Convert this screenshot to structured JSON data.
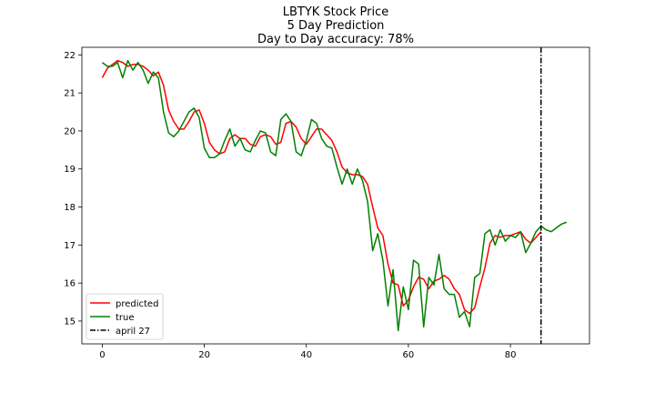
{
  "chart_data": {
    "type": "line",
    "title_lines": [
      "LBTYK Stock Price",
      "5 Day Prediction",
      "Day to Day accuracy: 78%"
    ],
    "xlabel": "",
    "ylabel": "",
    "xlim": [
      -4,
      95.5
    ],
    "ylim": [
      14.4,
      22.2
    ],
    "xticks": [
      0,
      20,
      40,
      60,
      80
    ],
    "yticks": [
      15,
      16,
      17,
      18,
      19,
      20,
      21,
      22
    ],
    "grid": false,
    "legend_position": "lower-left",
    "vline": {
      "x": 86,
      "label": "april 27",
      "color": "#000000",
      "style": "dash-dot"
    },
    "series": [
      {
        "name": "predicted",
        "color": "#ff0000",
        "x": [
          0,
          1,
          2,
          3,
          4,
          5,
          6,
          7,
          8,
          9,
          10,
          11,
          12,
          13,
          14,
          15,
          16,
          17,
          18,
          19,
          20,
          21,
          22,
          23,
          24,
          25,
          26,
          27,
          28,
          29,
          30,
          31,
          32,
          33,
          34,
          35,
          36,
          37,
          38,
          39,
          40,
          41,
          42,
          43,
          44,
          45,
          46,
          47,
          48,
          49,
          50,
          51,
          52,
          53,
          54,
          55,
          56,
          57,
          58,
          59,
          60,
          61,
          62,
          63,
          64,
          65,
          66,
          67,
          68,
          69,
          70,
          71,
          72,
          73,
          74,
          75,
          76,
          77,
          78,
          79,
          80,
          81,
          82,
          83,
          84,
          85,
          86
        ],
        "values": [
          21.4,
          21.65,
          21.75,
          21.85,
          21.8,
          21.7,
          21.75,
          21.75,
          21.7,
          21.6,
          21.45,
          21.55,
          21.2,
          20.55,
          20.25,
          20.05,
          20.05,
          20.25,
          20.5,
          20.55,
          20.2,
          19.7,
          19.5,
          19.4,
          19.45,
          19.8,
          19.9,
          19.8,
          19.8,
          19.65,
          19.6,
          19.85,
          19.9,
          19.85,
          19.65,
          19.7,
          20.2,
          20.25,
          20.1,
          19.8,
          19.65,
          19.85,
          20.05,
          20.05,
          19.9,
          19.75,
          19.45,
          19.05,
          18.9,
          18.85,
          18.85,
          18.8,
          18.6,
          18.0,
          17.45,
          17.25,
          16.5,
          16.0,
          15.95,
          15.4,
          15.55,
          15.9,
          16.15,
          16.1,
          15.85,
          16.05,
          16.1,
          16.2,
          16.1,
          15.85,
          15.7,
          15.3,
          15.2,
          15.35,
          15.9,
          16.4,
          17.05,
          17.25,
          17.2,
          17.25,
          17.25,
          17.3,
          17.35,
          17.15,
          17.05,
          17.2,
          17.35
        ]
      },
      {
        "name": "true",
        "color": "#008000",
        "x": [
          0,
          1,
          2,
          3,
          4,
          5,
          6,
          7,
          8,
          9,
          10,
          11,
          12,
          13,
          14,
          15,
          16,
          17,
          18,
          19,
          20,
          21,
          22,
          23,
          24,
          25,
          26,
          27,
          28,
          29,
          30,
          31,
          32,
          33,
          34,
          35,
          36,
          37,
          38,
          39,
          40,
          41,
          42,
          43,
          44,
          45,
          46,
          47,
          48,
          49,
          50,
          51,
          52,
          53,
          54,
          55,
          56,
          57,
          58,
          59,
          60,
          61,
          62,
          63,
          64,
          65,
          66,
          67,
          68,
          69,
          70,
          71,
          72,
          73,
          74,
          75,
          76,
          77,
          78,
          79,
          80,
          81,
          82,
          83,
          84,
          85,
          86,
          87,
          88,
          89,
          90,
          91
        ],
        "values": [
          21.8,
          21.7,
          21.7,
          21.8,
          21.4,
          21.85,
          21.6,
          21.8,
          21.6,
          21.25,
          21.55,
          21.4,
          20.5,
          19.95,
          19.85,
          20.0,
          20.25,
          20.5,
          20.6,
          20.35,
          19.55,
          19.3,
          19.3,
          19.4,
          19.75,
          20.05,
          19.6,
          19.8,
          19.5,
          19.45,
          19.75,
          20.0,
          19.95,
          19.45,
          19.35,
          20.3,
          20.45,
          20.25,
          19.45,
          19.35,
          19.75,
          20.3,
          20.2,
          19.8,
          19.6,
          19.55,
          19.05,
          18.6,
          19.0,
          18.6,
          19.0,
          18.7,
          18.15,
          16.85,
          17.3,
          16.6,
          15.4,
          16.35,
          14.75,
          15.9,
          15.3,
          16.6,
          16.5,
          14.85,
          16.15,
          15.95,
          16.75,
          15.85,
          15.7,
          15.7,
          15.1,
          15.25,
          14.85,
          16.15,
          16.25,
          17.3,
          17.4,
          17.0,
          17.4,
          17.1,
          17.25,
          17.2,
          17.35,
          16.8,
          17.05,
          17.35,
          17.5,
          17.4,
          17.35,
          17.45,
          17.55,
          17.6
        ]
      }
    ]
  }
}
